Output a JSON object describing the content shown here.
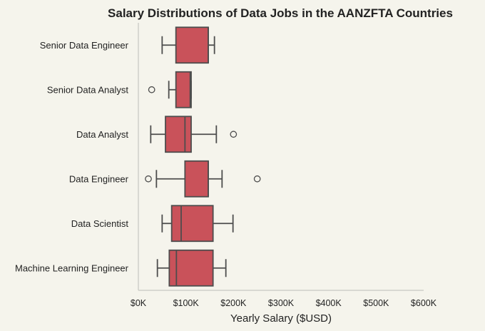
{
  "chart_data": {
    "type": "boxplot",
    "title": "Salary Distributions of Data Jobs in the AANZFTA Countries",
    "xlabel": "Yearly Salary ($USD)",
    "ylabel": "",
    "xlim": [
      0,
      600000
    ],
    "xticks": [
      0,
      100000,
      200000,
      300000,
      400000,
      500000,
      600000
    ],
    "xtick_labels": [
      "$0K",
      "$100K",
      "$200K",
      "$300K",
      "$400K",
      "$500K",
      "$600K"
    ],
    "orientation": "horizontal",
    "grid": false,
    "box_color": "#c9525a",
    "categories": [
      "Senior Data Engineer",
      "Senior Data Analyst",
      "Data Analyst",
      "Data Engineer",
      "Data Scientist",
      "Machine Learning Engineer"
    ],
    "boxes": [
      {
        "whislo": 50000,
        "q1": 79000,
        "med": 147000,
        "q3": 147000,
        "whishi": 160000,
        "fliers": []
      },
      {
        "whislo": 64000,
        "q1": 79000,
        "med": 109000,
        "q3": 111000,
        "whishi": 111000,
        "fliers": [
          28000
        ]
      },
      {
        "whislo": 26000,
        "q1": 57000,
        "med": 98000,
        "q3": 111000,
        "whishi": 164000,
        "fliers": [
          200000
        ]
      },
      {
        "whislo": 38000,
        "q1": 98000,
        "med": 147000,
        "q3": 147000,
        "whishi": 176000,
        "fliers": [
          21000,
          250000
        ]
      },
      {
        "whislo": 50000,
        "q1": 70000,
        "med": 90000,
        "q3": 157000,
        "whishi": 199000,
        "fliers": []
      },
      {
        "whislo": 40000,
        "q1": 65000,
        "med": 80000,
        "q3": 157000,
        "whishi": 184000,
        "fliers": []
      }
    ]
  }
}
